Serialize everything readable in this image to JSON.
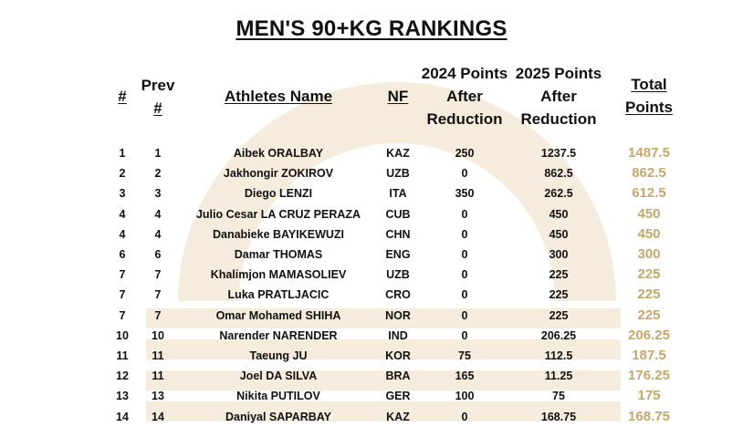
{
  "title": "MEN'S 90+KG RANKINGS",
  "headers": {
    "rank": "#",
    "prev_line1": "Prev",
    "prev_line2": "#",
    "name": "Athletes Name",
    "nf": "NF",
    "p2024_line1": "2024 Points",
    "p2024_line2": "After",
    "p2024_line3": "Reduction",
    "p2025_line1": "2025 Points",
    "p2025_line2": "After",
    "p2025_line3": "Reduction",
    "total_line1": "Total",
    "total_line2": "Points"
  },
  "colors": {
    "total_points": "#c7a66b",
    "watermark": "#f5ecdd"
  },
  "rows": [
    {
      "rank": "1",
      "prev": "1",
      "name": "Aibek ORALBAY",
      "nf": "KAZ",
      "p2024": "250",
      "p2025": "1237.5",
      "total": "1487.5"
    },
    {
      "rank": "2",
      "prev": "2",
      "name": "Jakhongir ZOKIROV",
      "nf": "UZB",
      "p2024": "0",
      "p2025": "862.5",
      "total": "862.5"
    },
    {
      "rank": "3",
      "prev": "3",
      "name": "Diego LENZI",
      "nf": "ITA",
      "p2024": "350",
      "p2025": "262.5",
      "total": "612.5"
    },
    {
      "rank": "4",
      "prev": "4",
      "name": "Julio Cesar LA CRUZ PERAZA",
      "nf": "CUB",
      "p2024": "0",
      "p2025": "450",
      "total": "450"
    },
    {
      "rank": "4",
      "prev": "4",
      "name": "Danabieke BAYIKEWUZI",
      "nf": "CHN",
      "p2024": "0",
      "p2025": "450",
      "total": "450"
    },
    {
      "rank": "6",
      "prev": "6",
      "name": "Damar THOMAS",
      "nf": "ENG",
      "p2024": "0",
      "p2025": "300",
      "total": "300"
    },
    {
      "rank": "7",
      "prev": "7",
      "name": "Khalimjon MAMASOLIEV",
      "nf": "UZB",
      "p2024": "0",
      "p2025": "225",
      "total": "225"
    },
    {
      "rank": "7",
      "prev": "7",
      "name": "Luka PRATLJACIC",
      "nf": "CRO",
      "p2024": "0",
      "p2025": "225",
      "total": "225"
    },
    {
      "rank": "7",
      "prev": "7",
      "name": "Omar Mohamed SHIHA",
      "nf": "NOR",
      "p2024": "0",
      "p2025": "225",
      "total": "225"
    },
    {
      "rank": "10",
      "prev": "10",
      "name": "Narender NARENDER",
      "nf": "IND",
      "p2024": "0",
      "p2025": "206.25",
      "total": "206.25"
    },
    {
      "rank": "11",
      "prev": "11",
      "name": "Taeung JU",
      "nf": "KOR",
      "p2024": "75",
      "p2025": "112.5",
      "total": "187.5"
    },
    {
      "rank": "12",
      "prev": "11",
      "name": "Joel DA SILVA",
      "nf": "BRA",
      "p2024": "165",
      "p2025": "11.25",
      "total": "176.25"
    },
    {
      "rank": "13",
      "prev": "13",
      "name": "Nikita PUTILOV",
      "nf": "GER",
      "p2024": "100",
      "p2025": "75",
      "total": "175"
    },
    {
      "rank": "14",
      "prev": "14",
      "name": "Daniyal SAPARBAY",
      "nf": "KAZ",
      "p2024": "0",
      "p2025": "168.75",
      "total": "168.75"
    }
  ]
}
